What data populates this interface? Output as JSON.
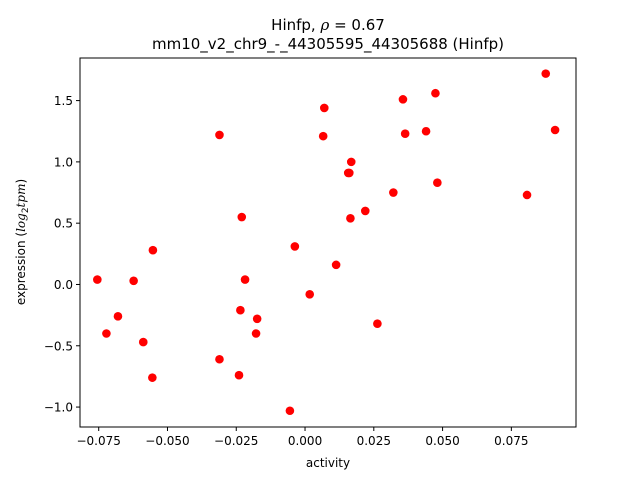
{
  "chart_data": {
    "type": "scatter",
    "title": "Hinfp, ρ = 0.67",
    "title_prefix": "Hinfp, ",
    "title_rho": "ρ",
    "title_suffix": " = 0.67",
    "subtitle": "mm10_v2_chr9_-_44305595_44305688 (Hinfp)",
    "xlabel": "activity",
    "ylabel_prefix": "expression (",
    "ylabel_log": "log",
    "ylabel_sub": "2",
    "ylabel_tpm": "tpm",
    "ylabel_suffix": ")",
    "xlim": [
      -0.0818,
      0.0985
    ],
    "ylim": [
      -1.1626,
      1.8474
    ],
    "xticks": [
      {
        "value": -0.075,
        "label": "−0.075"
      },
      {
        "value": -0.05,
        "label": "−0.050"
      },
      {
        "value": -0.025,
        "label": "−0.025"
      },
      {
        "value": 0.0,
        "label": "0.000"
      },
      {
        "value": 0.025,
        "label": "0.025"
      },
      {
        "value": 0.05,
        "label": "0.050"
      },
      {
        "value": 0.075,
        "label": "0.075"
      }
    ],
    "yticks": [
      {
        "value": -1.0,
        "label": "−1.0"
      },
      {
        "value": -0.5,
        "label": "−0.5"
      },
      {
        "value": 0.0,
        "label": "0.0"
      },
      {
        "value": 0.5,
        "label": "0.5"
      },
      {
        "value": 1.0,
        "label": "1.0"
      },
      {
        "value": 1.5,
        "label": "1.5"
      }
    ],
    "grid": false,
    "marker_color": "#ff0000",
    "series": [
      {
        "points": [
          {
            "x": -0.0755,
            "y": 0.04
          },
          {
            "x": -0.0722,
            "y": -0.4
          },
          {
            "x": -0.068,
            "y": -0.26
          },
          {
            "x": -0.0623,
            "y": 0.03
          },
          {
            "x": -0.0588,
            "y": -0.47
          },
          {
            "x": -0.0553,
            "y": 0.28
          },
          {
            "x": -0.0555,
            "y": -0.76
          },
          {
            "x": -0.0311,
            "y": 1.22
          },
          {
            "x": -0.0311,
            "y": -0.61
          },
          {
            "x": -0.024,
            "y": -0.74
          },
          {
            "x": -0.0235,
            "y": -0.21
          },
          {
            "x": -0.023,
            "y": 0.55
          },
          {
            "x": -0.0218,
            "y": 0.04
          },
          {
            "x": -0.0178,
            "y": -0.4
          },
          {
            "x": -0.0174,
            "y": -0.28
          },
          {
            "x": -0.0055,
            "y": -1.03
          },
          {
            "x": -0.0037,
            "y": 0.31
          },
          {
            "x": 0.0017,
            "y": -0.08
          },
          {
            "x": 0.0066,
            "y": 1.21
          },
          {
            "x": 0.007,
            "y": 1.44
          },
          {
            "x": 0.0113,
            "y": 0.16
          },
          {
            "x": 0.0157,
            "y": 0.91
          },
          {
            "x": 0.0161,
            "y": 0.91
          },
          {
            "x": 0.0165,
            "y": 0.54
          },
          {
            "x": 0.0168,
            "y": 1.0
          },
          {
            "x": 0.0219,
            "y": 0.6
          },
          {
            "x": 0.0263,
            "y": -0.32
          },
          {
            "x": 0.0321,
            "y": 0.75
          },
          {
            "x": 0.0356,
            "y": 1.51
          },
          {
            "x": 0.0364,
            "y": 1.23
          },
          {
            "x": 0.044,
            "y": 1.25
          },
          {
            "x": 0.0474,
            "y": 1.56
          },
          {
            "x": 0.0481,
            "y": 0.83
          },
          {
            "x": 0.0807,
            "y": 0.73
          },
          {
            "x": 0.0875,
            "y": 1.72
          },
          {
            "x": 0.0909,
            "y": 1.26
          }
        ]
      }
    ]
  }
}
